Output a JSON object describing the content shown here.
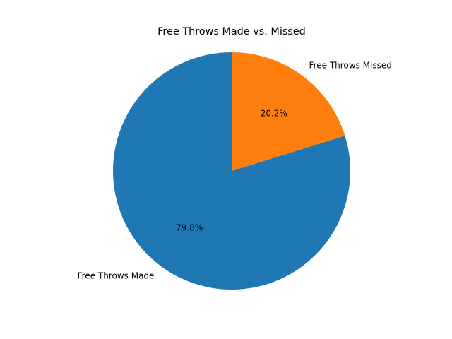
{
  "chart_data": {
    "type": "pie",
    "title": "Free Throws Made vs. Missed",
    "labels": [
      "Free Throws Made",
      "Free Throws Missed"
    ],
    "values": [
      79.8,
      20.2
    ],
    "percent_labels": [
      "79.8%",
      "20.2%"
    ],
    "colors": [
      "#1f77b4",
      "#ff7f0e"
    ],
    "start_angle_deg": 90,
    "direction": "counterclockwise"
  }
}
